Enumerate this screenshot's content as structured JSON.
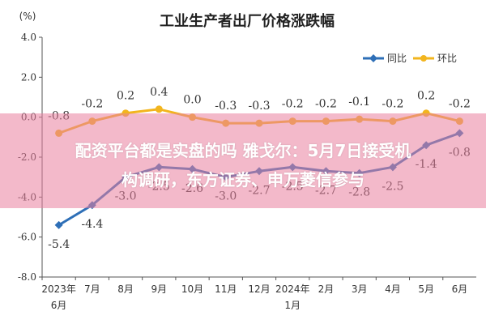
{
  "chart_data": {
    "type": "line",
    "title": "工业生产者出厂价格涨跌幅",
    "unit": "(%)",
    "ylim": [
      -8.0,
      4.0
    ],
    "yticks": [
      "4.0",
      "2.0",
      "0.0",
      "-2.0",
      "-4.0",
      "-6.0",
      "-8.0"
    ],
    "ytick_values": [
      4,
      2,
      0,
      -2,
      -4,
      -6,
      -8
    ],
    "categories": [
      [
        "2023年",
        "6月"
      ],
      [
        "7月"
      ],
      [
        "8月"
      ],
      [
        "9月"
      ],
      [
        "10月"
      ],
      [
        "11月"
      ],
      [
        "12月"
      ],
      [
        "2024年",
        "1月"
      ],
      [
        "2月"
      ],
      [
        "3月"
      ],
      [
        "4月"
      ],
      [
        "5月"
      ],
      [
        "6月"
      ]
    ],
    "legend_position": "top-right",
    "grid": false,
    "series": [
      {
        "name": "同比",
        "color": "#2e6fb7",
        "values": [
          -5.4,
          -4.4,
          -3.0,
          -2.5,
          -2.6,
          -3.0,
          -2.7,
          -2.5,
          -2.7,
          -2.8,
          -2.5,
          -1.4,
          -0.8
        ],
        "labels": [
          "-5.4",
          "-4.4",
          "-3.0",
          "-2.5",
          "-2.6",
          "-3.0",
          "-2.7",
          "-2.5",
          "-2.7",
          "-2.8",
          "-2.5",
          "-1.4",
          "-0.8"
        ]
      },
      {
        "name": "环比",
        "color": "#f2b51e",
        "values": [
          -0.8,
          -0.2,
          0.2,
          0.4,
          0.0,
          -0.3,
          -0.3,
          -0.2,
          -0.2,
          -0.1,
          -0.2,
          0.2,
          -0.2
        ],
        "labels": [
          "-0.8",
          "-0.2",
          "0.2",
          "0.4",
          "0.0",
          "-0.3",
          "-0.3",
          "-0.2",
          "-0.2",
          "-0.1",
          "-0.2",
          "0.2",
          "-0.2"
        ]
      }
    ]
  },
  "overlay": {
    "line1": "配资平台都是实盘的吗 雅戈尔：5月7日接受机",
    "line2": "构调研，东方证券、申万菱信参与",
    "color": "#ea809e"
  }
}
